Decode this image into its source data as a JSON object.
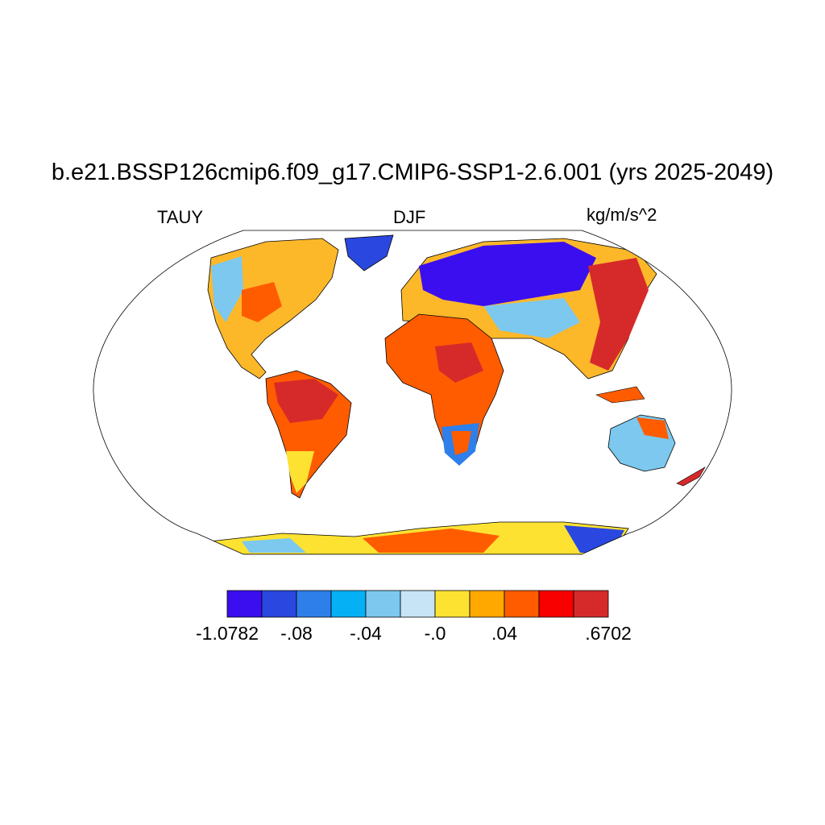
{
  "title": "b.e21.BSSP126cmip6.f09_g17.CMIP6-SSP1-2.6.001 (yrs 2025-2049)",
  "left_label": "TAUY",
  "center_label": "DJF",
  "right_label": "kg/m/s^2",
  "colorbar": {
    "colors": [
      "#3b0ef0",
      "#2a48e0",
      "#2e7fea",
      "#06b0f5",
      "#7cc8ee",
      "#c6e4f6",
      "#fde232",
      "#ffa800",
      "#ff5c00",
      "#f80000",
      "#d62a2a"
    ],
    "labels": [
      {
        "text": "-1.0782",
        "boundary": 0
      },
      {
        "text": "-.08",
        "boundary": 2
      },
      {
        "text": "-.04",
        "boundary": 4
      },
      {
        "text": "-.0",
        "boundary": 6
      },
      {
        "text": ".04",
        "boundary": 8
      },
      {
        "text": ".6702",
        "boundary": 11
      }
    ]
  }
}
